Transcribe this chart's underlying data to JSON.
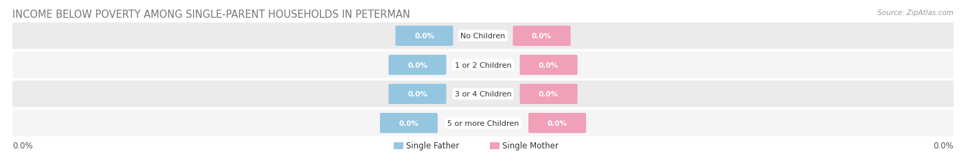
{
  "title": "INCOME BELOW POVERTY AMONG SINGLE-PARENT HOUSEHOLDS IN PETERMAN",
  "source": "Source: ZipAtlas.com",
  "categories": [
    "No Children",
    "1 or 2 Children",
    "3 or 4 Children",
    "5 or more Children"
  ],
  "single_father_values": [
    0.0,
    0.0,
    0.0,
    0.0
  ],
  "single_mother_values": [
    0.0,
    0.0,
    0.0,
    0.0
  ],
  "father_color": "#94C6E0",
  "mother_color": "#F0A0B8",
  "row_bg_color": "#EBEBEB",
  "row_bg_color2": "#F5F5F5",
  "title_color": "#777777",
  "source_color": "#999999",
  "label_color": "#555555",
  "bar_label_color": "#FFFFFF",
  "category_label_color": "#333333",
  "title_fontsize": 10.5,
  "source_fontsize": 7.5,
  "bar_label_fontsize": 7.5,
  "category_fontsize": 8.0,
  "axis_fontsize": 8.5,
  "legend_fontsize": 8.5,
  "x_left_label": "0.0%",
  "x_right_label": "0.0%"
}
